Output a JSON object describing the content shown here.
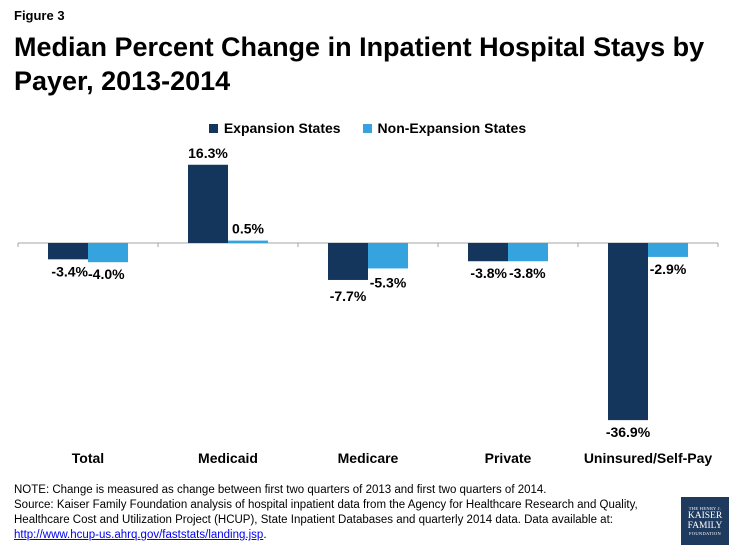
{
  "figure_label": "Figure 3",
  "colors": {
    "expansion": "#15365c",
    "non_expansion": "#34a3de",
    "axis": "#a6a6a6"
  },
  "legend": {
    "expansion": "Expansion States",
    "non_expansion": "Non-Expansion States"
  },
  "chart_data": {
    "type": "bar",
    "title": "Median Percent Change in Inpatient Hospital Stays by Payer, 2013-2014",
    "categories": [
      "Total",
      "Medicaid",
      "Medicare",
      "Private",
      "Uninsured/Self-Pay"
    ],
    "series": [
      {
        "name": "Expansion States",
        "values": [
          -3.4,
          16.3,
          -7.7,
          -3.8,
          -36.9
        ],
        "labels": [
          "-3.4%",
          "16.3%",
          "-7.7%",
          "-3.8%",
          "-36.9%"
        ]
      },
      {
        "name": "Non-Expansion States",
        "values": [
          -4.0,
          0.5,
          -5.3,
          -3.8,
          -2.9
        ],
        "labels": [
          "-4.0%",
          "0.5%",
          "-5.3%",
          "-3.8%",
          "-2.9%"
        ]
      }
    ],
    "xlabel": "",
    "ylabel": "",
    "ylim": [
      -36.9,
      16.3
    ],
    "grid": false,
    "legend_position": "top-center"
  },
  "notes": {
    "note": "NOTE: Change is measured as change between first two quarters of 2013 and first two quarters of 2014.",
    "source": "Source:  Kaiser Family Foundation analysis of hospital inpatient data from the Agency for Healthcare Research and Quality, Healthcare Cost and Utilization Project (HCUP), State Inpatient Databases and quarterly 2014 data. Data available at:",
    "link": "http://www.hcup-us.ahrq.gov/faststats/landing.jsp",
    "link_suffix": "."
  },
  "logo": {
    "line1": "THE HENRY J.",
    "line2": "KAISER",
    "line3": "FAMILY",
    "line4": "FOUNDATION"
  }
}
